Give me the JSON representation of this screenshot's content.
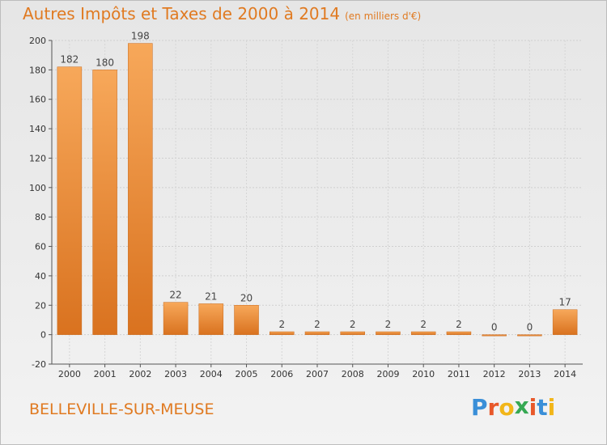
{
  "chart_data": {
    "type": "bar",
    "title": "Autres Impôts et Taxes de 2000 à 2014",
    "subtitle": "(en milliers d'€)",
    "categories": [
      "2000",
      "2001",
      "2002",
      "2003",
      "2004",
      "2005",
      "2006",
      "2007",
      "2008",
      "2009",
      "2010",
      "2011",
      "2012",
      "2013",
      "2014"
    ],
    "values": [
      182,
      180,
      198,
      22,
      21,
      20,
      2,
      2,
      2,
      2,
      2,
      2,
      0,
      0,
      17
    ],
    "ylim": [
      -20,
      200
    ],
    "yticks": [
      -20,
      0,
      20,
      40,
      60,
      80,
      100,
      120,
      140,
      160,
      180,
      200
    ],
    "grid": true,
    "xlabel": "",
    "ylabel": "",
    "bar_color": "#f0a14e"
  },
  "footer": {
    "commune": "BELLEVILLE-SUR-MEUSE",
    "brand_letters": [
      "P",
      "r",
      "o",
      "x",
      "i",
      "t",
      "i"
    ],
    "brand_colors": [
      "#3a8fd8",
      "#e8582a",
      "#f2b619",
      "#36a853",
      "#e8582a",
      "#3a8fd8",
      "#f2b619"
    ]
  },
  "colors": {
    "accent": "#e07a21",
    "background": "#eaeaea"
  }
}
